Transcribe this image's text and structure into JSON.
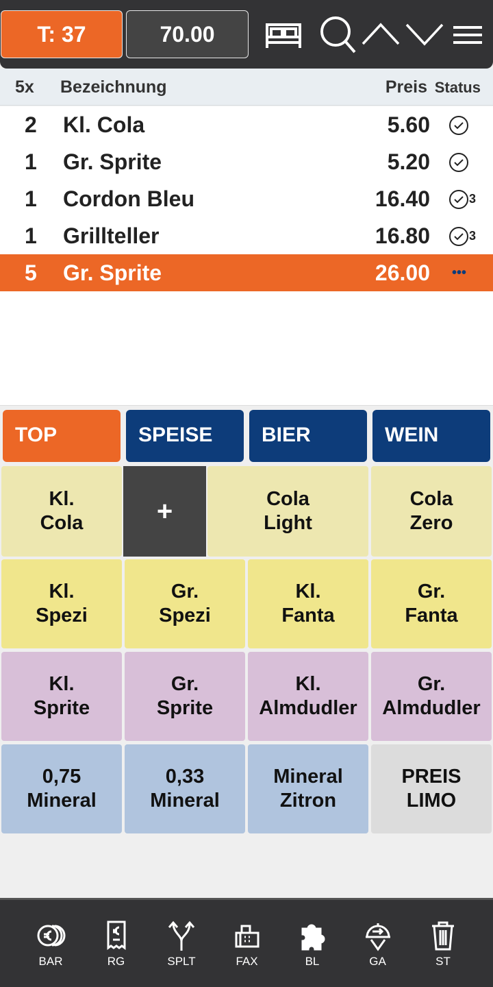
{
  "header": {
    "table_label": "T: 37",
    "total": "70.00",
    "icons": [
      "bed-icon",
      "search-icon",
      "chevron-up-icon",
      "chevron-down-icon",
      "menu-icon"
    ]
  },
  "list_header": {
    "qty": "5x",
    "name": "Bezeichnung",
    "price": "Preis",
    "status": "Status"
  },
  "items": [
    {
      "qty": "2",
      "name": "Kl. Cola",
      "price": "5.60",
      "status": "",
      "status_icon": "check-circle-icon"
    },
    {
      "qty": "1",
      "name": "Gr. Sprite",
      "price": "5.20",
      "status": "",
      "status_icon": "check-circle-icon"
    },
    {
      "qty": "1",
      "name": "Cordon Bleu",
      "price": "16.40",
      "status": "3",
      "status_icon": "check-circle-icon"
    },
    {
      "qty": "1",
      "name": "Grillteller",
      "price": "16.80",
      "status": "3",
      "status_icon": "check-circle-icon"
    },
    {
      "qty": "5",
      "name": "Gr. Sprite",
      "price": "26.00",
      "status": "•••",
      "status_icon": "more-icon",
      "selected": true
    }
  ],
  "categories": [
    {
      "label": "TOP",
      "color": "#ec6726"
    },
    {
      "label": "SPEISE",
      "color": "#0d3c7a"
    },
    {
      "label": "BIER",
      "color": "#0d3c7a"
    },
    {
      "label": "WEIN",
      "color": "#0d3c7a"
    }
  ],
  "products": [
    {
      "l1": "Kl.",
      "l2": "Cola",
      "color": "#ede7b0"
    },
    {
      "l1": "+",
      "l2": "",
      "color": "#444444"
    },
    {
      "l1": "Cola",
      "l2": "Light",
      "color": "#ede7b0"
    },
    {
      "l1": "Cola",
      "l2": "Zero",
      "color": "#ede7b0"
    },
    {
      "l1": "Kl.",
      "l2": "Spezi",
      "color": "#f0e68c"
    },
    {
      "l1": "Gr.",
      "l2": "Spezi",
      "color": "#f0e68c"
    },
    {
      "l1": "Kl.",
      "l2": "Fanta",
      "color": "#f0e68c"
    },
    {
      "l1": "Gr.",
      "l2": "Fanta",
      "color": "#f0e68c"
    },
    {
      "l1": "Kl.",
      "l2": "Sprite",
      "color": "#d8bfd8"
    },
    {
      "l1": "Gr.",
      "l2": "Sprite",
      "color": "#d8bfd8"
    },
    {
      "l1": "Kl.",
      "l2": "Almdudler",
      "color": "#d8bfd8"
    },
    {
      "l1": "Gr.",
      "l2": "Almdudler",
      "color": "#d8bfd8"
    },
    {
      "l1": "0,75",
      "l2": "Mineral",
      "color": "#b0c4de"
    },
    {
      "l1": "0,33",
      "l2": "Mineral",
      "color": "#b0c4de"
    },
    {
      "l1": "Mineral",
      "l2": "Zitron",
      "color": "#b0c4de"
    },
    {
      "l1": "PREIS",
      "l2": "LIMO",
      "color": "#dcdcdc"
    }
  ],
  "bottom": [
    {
      "label": "BAR",
      "icon": "coins-euro-icon"
    },
    {
      "label": "RG",
      "icon": "receipt-euro-icon"
    },
    {
      "label": "SPLT",
      "icon": "split-icon"
    },
    {
      "label": "FAX",
      "icon": "fax-icon"
    },
    {
      "label": "BL",
      "icon": "puzzle-icon"
    },
    {
      "label": "GA",
      "icon": "cloche-icon"
    },
    {
      "label": "ST",
      "icon": "trash-icon"
    }
  ]
}
